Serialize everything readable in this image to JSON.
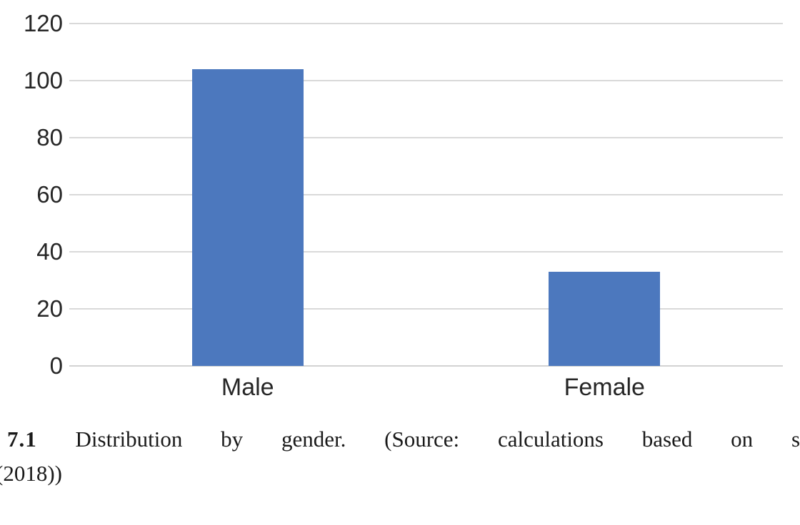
{
  "chart_data": {
    "type": "bar",
    "categories": [
      "Male",
      "Female"
    ],
    "values": [
      104,
      33
    ],
    "title": "",
    "xlabel": "",
    "ylabel": "",
    "ylim": [
      0,
      120
    ],
    "ytick_step": 20,
    "ytick_labels": [
      "0",
      "20",
      "40",
      "60",
      "80",
      "100",
      "120"
    ],
    "grid": true,
    "legend_position": "none",
    "bar_color": "#4C78BE",
    "gridline_color": "#D9D9D9",
    "axis_line_color": "#D2D2D2",
    "tick_text_color": "#262626"
  },
  "caption": {
    "number": "7.1",
    "text": "Distribution by gender. (Source: calculations based on s",
    "line2": "(2018))"
  }
}
